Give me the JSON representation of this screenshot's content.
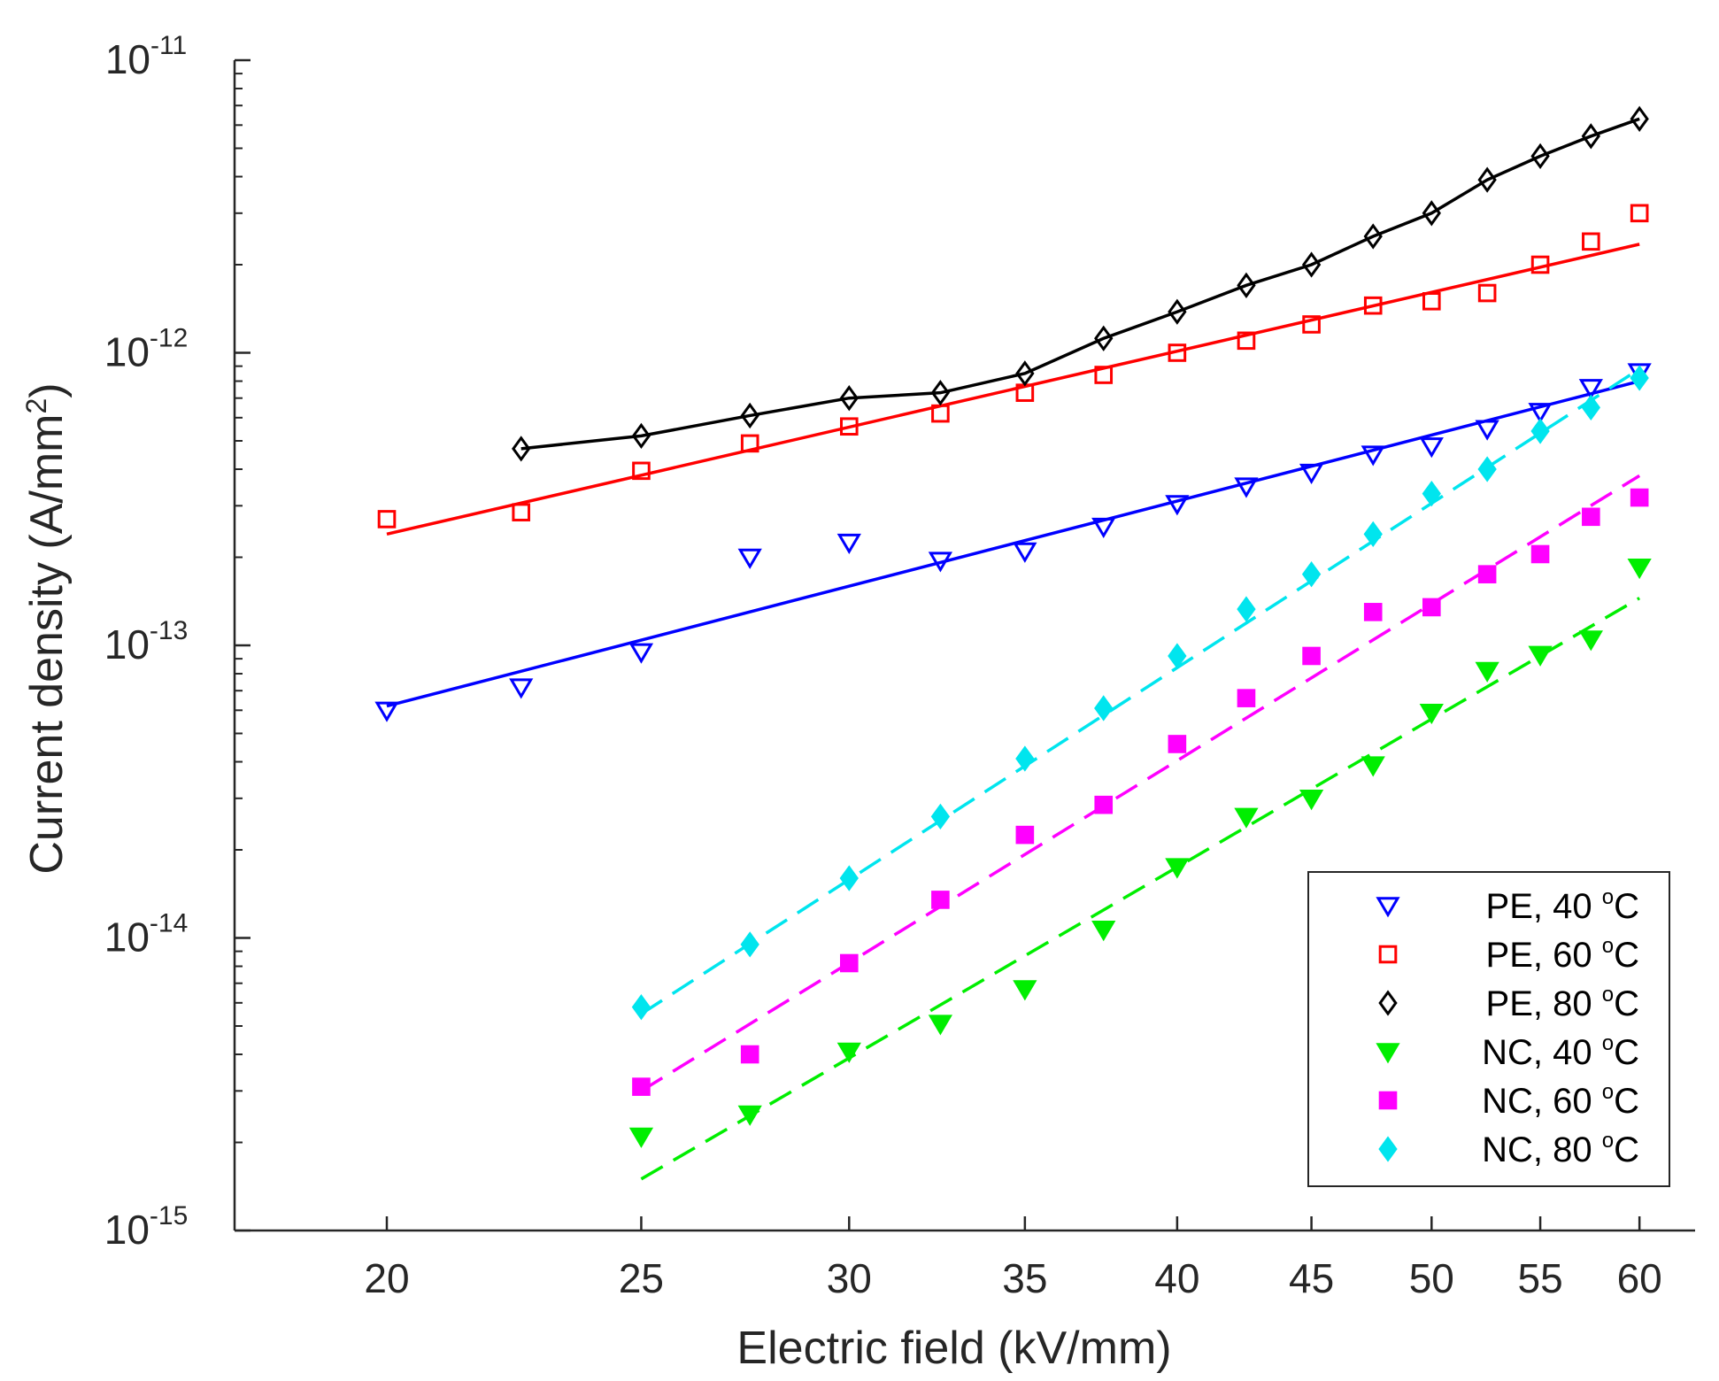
{
  "chart_data": {
    "type": "scatter",
    "xscale": "log",
    "yscale": "log",
    "xlabel": "Electric field (kV/mm)",
    "ylabel_main": "Current density (A/mm",
    "ylabel_sup": "2",
    "ylabel_close": ")",
    "xlim": [
      17.5,
      63
    ],
    "ylim": [
      1e-15,
      1e-11
    ],
    "xticks": [
      20,
      25,
      30,
      35,
      40,
      45,
      50,
      55,
      60
    ],
    "xtick_labels": [
      "20",
      "25",
      "30",
      "35",
      "40",
      "45",
      "50",
      "55",
      "60"
    ],
    "yticks": [
      {
        "value": 1e-11,
        "base": "10",
        "exp": "-11"
      },
      {
        "value": 1e-12,
        "base": "10",
        "exp": "-12"
      },
      {
        "value": 1e-13,
        "base": "10",
        "exp": "-13"
      },
      {
        "value": 1e-14,
        "base": "10",
        "exp": "-14"
      },
      {
        "value": 1e-15,
        "base": "10",
        "exp": "-15"
      }
    ],
    "series": [
      {
        "name": "PE, 40 °C",
        "label_text": "PE, 40",
        "unit_o": "o",
        "unit_c": "C",
        "marker": "triangle-down-open",
        "color": "#0000ff",
        "fit": "solid",
        "x": [
          20,
          22.5,
          25,
          27.5,
          30,
          32.5,
          35,
          37.5,
          40,
          42.5,
          45,
          47.5,
          50,
          52.5,
          55,
          57.5,
          60
        ],
        "y": [
          6e-14,
          7.2e-14,
          9.5e-14,
          2e-13,
          2.25e-13,
          1.95e-13,
          2.1e-13,
          2.55e-13,
          3.05e-13,
          3.5e-13,
          3.9e-13,
          4.5e-13,
          4.8e-13,
          5.5e-13,
          6.3e-13,
          7.6e-13,
          8.6e-13
        ],
        "fit_x": [
          20,
          60
        ],
        "fit_y": [
          6.2e-14,
          8e-13
        ]
      },
      {
        "name": "PE, 60 °C",
        "label_text": "PE, 60",
        "unit_o": "o",
        "unit_c": "C",
        "marker": "square-open",
        "color": "#ff0000",
        "fit": "solid",
        "x": [
          20,
          22.5,
          25,
          27.5,
          30,
          32.5,
          35,
          37.5,
          40,
          42.5,
          45,
          47.5,
          50,
          52.5,
          55,
          57.5,
          60
        ],
        "y": [
          2.7e-13,
          2.85e-13,
          3.95e-13,
          4.9e-13,
          5.6e-13,
          6.2e-13,
          7.3e-13,
          8.4e-13,
          1e-12,
          1.1e-12,
          1.25e-12,
          1.45e-12,
          1.5e-12,
          1.6e-12,
          2e-12,
          2.4e-12,
          3e-12
        ],
        "fit_x": [
          20,
          60
        ],
        "fit_y": [
          2.4e-13,
          2.35e-12
        ]
      },
      {
        "name": "PE, 80 °C",
        "label_text": "PE, 80",
        "unit_o": "o",
        "unit_c": "C",
        "marker": "diamond-open",
        "color": "#000000",
        "fit": "solid-connect",
        "x": [
          22.5,
          25,
          27.5,
          30,
          32.5,
          35,
          37.5,
          40,
          42.5,
          45,
          47.5,
          50,
          52.5,
          55,
          57.5,
          60
        ],
        "y": [
          4.7e-13,
          5.2e-13,
          6.1e-13,
          7e-13,
          7.3e-13,
          8.5e-13,
          1.12e-12,
          1.38e-12,
          1.7e-12,
          2e-12,
          2.5e-12,
          3e-12,
          3.9e-12,
          4.7e-12,
          5.5e-12,
          6.3e-12
        ],
        "fit_x": [],
        "fit_y": []
      },
      {
        "name": "NC, 40 °C",
        "label_text": "NC, 40",
        "unit_o": "o",
        "unit_c": "C",
        "marker": "triangle-down-filled",
        "color": "#00ee00",
        "fit": "dashed",
        "x": [
          25,
          27.5,
          30,
          32.5,
          35,
          37.5,
          40,
          42.5,
          45,
          47.5,
          50,
          52.5,
          55,
          57.5,
          60
        ],
        "y": [
          2.1e-15,
          2.5e-15,
          4.1e-15,
          5.1e-15,
          6.7e-15,
          1.07e-14,
          1.75e-14,
          2.6e-14,
          3e-14,
          3.9e-14,
          5.9e-14,
          8.2e-14,
          9.3e-14,
          1.05e-13,
          1.85e-13
        ],
        "fit_x": [
          25,
          60
        ],
        "fit_y": [
          1.5e-15,
          1.45e-13
        ]
      },
      {
        "name": "NC, 60 °C",
        "label_text": "NC, 60",
        "unit_o": "o",
        "unit_c": "C",
        "marker": "square-filled",
        "color": "#ff00ff",
        "fit": "dashed",
        "x": [
          25,
          27.5,
          30,
          32.5,
          35,
          37.5,
          40,
          42.5,
          45,
          47.5,
          50,
          52.5,
          55,
          57.5,
          60
        ],
        "y": [
          3.1e-15,
          4e-15,
          8.2e-15,
          1.35e-14,
          2.25e-14,
          2.85e-14,
          4.6e-14,
          6.6e-14,
          9.2e-14,
          1.3e-13,
          1.35e-13,
          1.75e-13,
          2.05e-13,
          2.75e-13,
          3.2e-13
        ],
        "fit_x": [
          25,
          60
        ],
        "fit_y": [
          3e-15,
          3.8e-13
        ]
      },
      {
        "name": "NC, 80 °C",
        "label_text": "NC, 80",
        "unit_o": "o",
        "unit_c": "C",
        "marker": "diamond-filled",
        "color": "#00e5ee",
        "fit": "dashed",
        "x": [
          25,
          27.5,
          30,
          32.5,
          35,
          37.5,
          40,
          42.5,
          45,
          47.5,
          50,
          52.5,
          55,
          57.5,
          60
        ],
        "y": [
          5.8e-15,
          9.5e-15,
          1.6e-14,
          2.6e-14,
          4.1e-14,
          6.1e-14,
          9.2e-14,
          1.33e-13,
          1.75e-13,
          2.4e-13,
          3.3e-13,
          4e-13,
          5.4e-13,
          6.5e-13,
          8.2e-13
        ],
        "fit_x": [
          25,
          60
        ],
        "fit_y": [
          5.5e-15,
          8.8e-13
        ]
      }
    ]
  }
}
